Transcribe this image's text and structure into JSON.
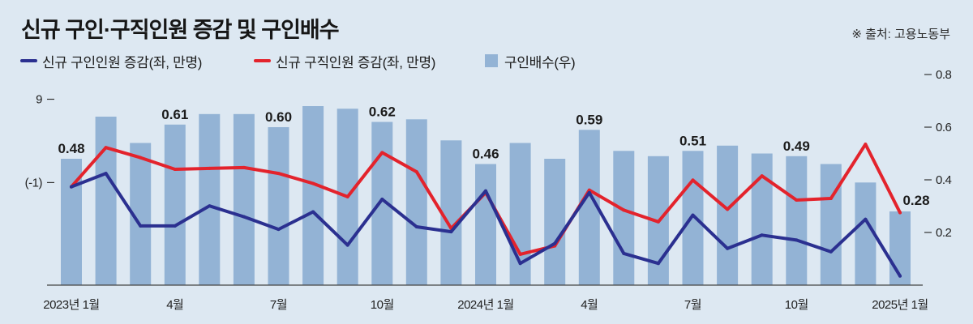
{
  "chart_data": {
    "type": "bar",
    "title": "신규 구인·구직인원 증감 및 구인배수",
    "source": "※ 출처: 고용노동부",
    "series": [
      {
        "name": "신규 구인인원 증감(좌, 만명)",
        "type": "line",
        "axis": "left",
        "color": "#2b3090",
        "values": [
          -1.5,
          0.1,
          -6.2,
          -6.2,
          -3.8,
          -5.1,
          -6.6,
          -4.5,
          -8.5,
          -3.0,
          -6.3,
          -6.9,
          -2.0,
          -10.7,
          -8.3,
          -2.2,
          -9.5,
          -10.7,
          -4.9,
          -8.9,
          -7.3,
          -7.9,
          -9.3,
          -5.4,
          -12.2
        ]
      },
      {
        "name": "신규 구직인원 증감(좌, 만명)",
        "type": "line",
        "axis": "left",
        "color": "#e3232c",
        "values": [
          -1.5,
          3.2,
          2.0,
          0.6,
          0.7,
          0.8,
          0.1,
          -1.1,
          -2.7,
          2.6,
          0.3,
          -6.5,
          -2.2,
          -9.6,
          -8.6,
          -1.9,
          -4.3,
          -5.7,
          -0.7,
          -4.2,
          -0.2,
          -3.1,
          -2.9,
          3.6,
          -4.6
        ]
      },
      {
        "name": "구인배수(우)",
        "type": "bar",
        "axis": "right",
        "color": "#93b3d5",
        "values": [
          0.48,
          0.64,
          0.54,
          0.61,
          0.65,
          0.65,
          0.6,
          0.68,
          0.67,
          0.62,
          0.63,
          0.55,
          0.46,
          0.54,
          0.48,
          0.59,
          0.51,
          0.49,
          0.51,
          0.53,
          0.5,
          0.49,
          0.46,
          0.39,
          0.28
        ]
      }
    ],
    "data_labels": [
      {
        "index": 0,
        "text": "0.48"
      },
      {
        "index": 3,
        "text": "0.61"
      },
      {
        "index": 6,
        "text": "0.60"
      },
      {
        "index": 9,
        "text": "0.62"
      },
      {
        "index": 12,
        "text": "0.46"
      },
      {
        "index": 15,
        "text": "0.59"
      },
      {
        "index": 18,
        "text": "0.51"
      },
      {
        "index": 21,
        "text": "0.49"
      },
      {
        "index": 24,
        "text": "0.28"
      }
    ],
    "x_tick_labels": [
      {
        "index": 0,
        "label": "2023년 1월"
      },
      {
        "index": 3,
        "label": "4월"
      },
      {
        "index": 6,
        "label": "7월"
      },
      {
        "index": 9,
        "label": "10월"
      },
      {
        "index": 12,
        "label": "2024년 1월"
      },
      {
        "index": 15,
        "label": "4월"
      },
      {
        "index": 18,
        "label": "7월"
      },
      {
        "index": 21,
        "label": "10월"
      },
      {
        "index": 24,
        "label": "2025년 1월"
      }
    ],
    "y_left": {
      "range": [
        -13.3,
        12.6
      ],
      "ticks": [
        {
          "value": 9,
          "label": "9"
        },
        {
          "value": -1,
          "label": "(-1)"
        }
      ]
    },
    "y_right": {
      "range": [
        0,
        0.82
      ],
      "ticks": [
        {
          "value": 0.8,
          "label": "0.8"
        },
        {
          "value": 0.6,
          "label": "0.6"
        },
        {
          "value": 0.4,
          "label": "0.4"
        },
        {
          "value": 0.2,
          "label": "0.2"
        }
      ]
    },
    "grid": false,
    "legend_position": "top-left"
  }
}
